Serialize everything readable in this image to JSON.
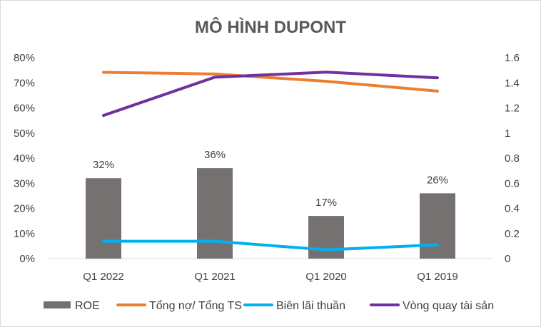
{
  "chart_data": {
    "type": "bar",
    "title": "MÔ HÌNH DUPONT",
    "categories": [
      "Q1 2022",
      "Q1 2021",
      "Q1 2020",
      "Q1 2019"
    ],
    "y_left": {
      "ylim": [
        0,
        0.8
      ],
      "ticks": [
        0,
        0.1,
        0.2,
        0.3,
        0.4,
        0.5,
        0.6,
        0.7,
        0.8
      ],
      "tick_labels": [
        "0%",
        "10%",
        "20%",
        "30%",
        "40%",
        "50%",
        "60%",
        "70%",
        "80%"
      ]
    },
    "y_right": {
      "ylim": [
        0,
        1.6
      ],
      "ticks": [
        0,
        0.2,
        0.4,
        0.6,
        0.8,
        1.0,
        1.2,
        1.4,
        1.6
      ],
      "tick_labels": [
        "0",
        "0.2",
        "0.4",
        "0.6",
        "0.8",
        "1",
        "1.2",
        "1.4",
        "1.6"
      ]
    },
    "grid": false,
    "legend_position": "bottom",
    "series": [
      {
        "name": "ROE",
        "type": "bar",
        "axis": "left",
        "color": "#767171",
        "values": [
          0.32,
          0.36,
          0.17,
          0.26
        ],
        "data_labels": [
          "32%",
          "36%",
          "17%",
          "26%"
        ]
      },
      {
        "name": "Tổng nợ/ Tổng TS",
        "type": "line",
        "axis": "left",
        "color": "#ED7D31",
        "values": [
          0.742,
          0.735,
          0.706,
          0.667
        ]
      },
      {
        "name": "Biên lãi thuần",
        "type": "line",
        "axis": "left",
        "color": "#00B0F0",
        "values": [
          0.069,
          0.069,
          0.035,
          0.055
        ]
      },
      {
        "name": "Vòng quay tài sản",
        "type": "line",
        "axis": "right",
        "color": "#7030A0",
        "values": [
          1.14,
          1.445,
          1.485,
          1.44
        ]
      }
    ]
  }
}
